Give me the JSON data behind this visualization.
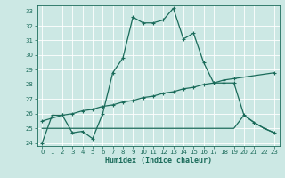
{
  "xlabel": "Humidex (Indice chaleur)",
  "ylabel": "",
  "bg_color": "#cce8e4",
  "line_color": "#1a6b5a",
  "grid_color": "#ffffff",
  "xlim": [
    -0.5,
    23.5
  ],
  "ylim": [
    23.8,
    33.4
  ],
  "xticks": [
    0,
    1,
    2,
    3,
    4,
    5,
    6,
    7,
    8,
    9,
    10,
    11,
    12,
    13,
    14,
    15,
    16,
    17,
    18,
    19,
    20,
    21,
    22,
    23
  ],
  "yticks": [
    24,
    25,
    26,
    27,
    28,
    29,
    30,
    31,
    32,
    33
  ],
  "line1_x": [
    0,
    1,
    2,
    3,
    4,
    5,
    6,
    7,
    8,
    9,
    10,
    11,
    12,
    13,
    14,
    15,
    16,
    17,
    18,
    19,
    20,
    21,
    22,
    23
  ],
  "line1_y": [
    24.0,
    25.9,
    25.9,
    24.7,
    24.8,
    24.3,
    26.0,
    28.8,
    29.8,
    32.6,
    32.2,
    32.2,
    32.4,
    33.2,
    31.1,
    31.5,
    29.5,
    28.1,
    28.1,
    28.1,
    25.9,
    25.4,
    25.0,
    24.7
  ],
  "line2_x": [
    0,
    2,
    3,
    4,
    5,
    6,
    7,
    8,
    9,
    10,
    11,
    12,
    13,
    14,
    15,
    16,
    17,
    18,
    19,
    23
  ],
  "line2_y": [
    25.5,
    25.9,
    26.0,
    26.2,
    26.3,
    26.5,
    26.6,
    26.8,
    26.9,
    27.1,
    27.2,
    27.4,
    27.5,
    27.7,
    27.8,
    28.0,
    28.1,
    28.3,
    28.4,
    28.8
  ],
  "line3_x": [
    0,
    1,
    2,
    3,
    4,
    5,
    6,
    19,
    20,
    21,
    22,
    23
  ],
  "line3_y": [
    25.0,
    25.0,
    25.0,
    25.0,
    25.0,
    25.0,
    25.0,
    25.0,
    25.9,
    25.4,
    25.0,
    24.7
  ]
}
